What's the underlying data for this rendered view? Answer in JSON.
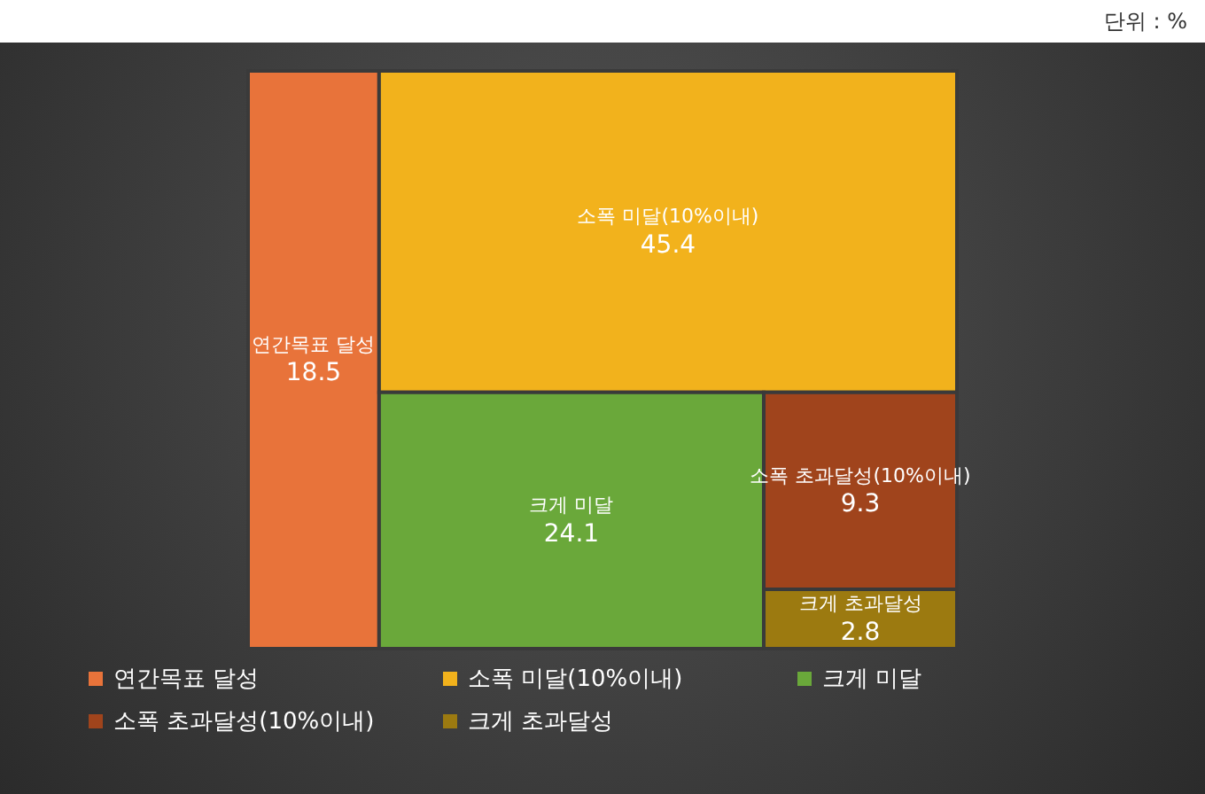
{
  "chart_data": {
    "type": "other",
    "categories": [
      "연간목표 달성",
      "소폭 미달(10%이내)",
      "크게 미달",
      "소폭 초과달성(10%이내)",
      "크게 초과달성"
    ],
    "values": [
      18.5,
      45.4,
      24.1,
      9.3,
      2.8
    ],
    "colors": [
      "#e8733a",
      "#f2b21c",
      "#6aa83a",
      "#a0441c",
      "#9c7a10"
    ],
    "data_labels": true,
    "annotations": [
      "단위 : %"
    ]
  }
}
